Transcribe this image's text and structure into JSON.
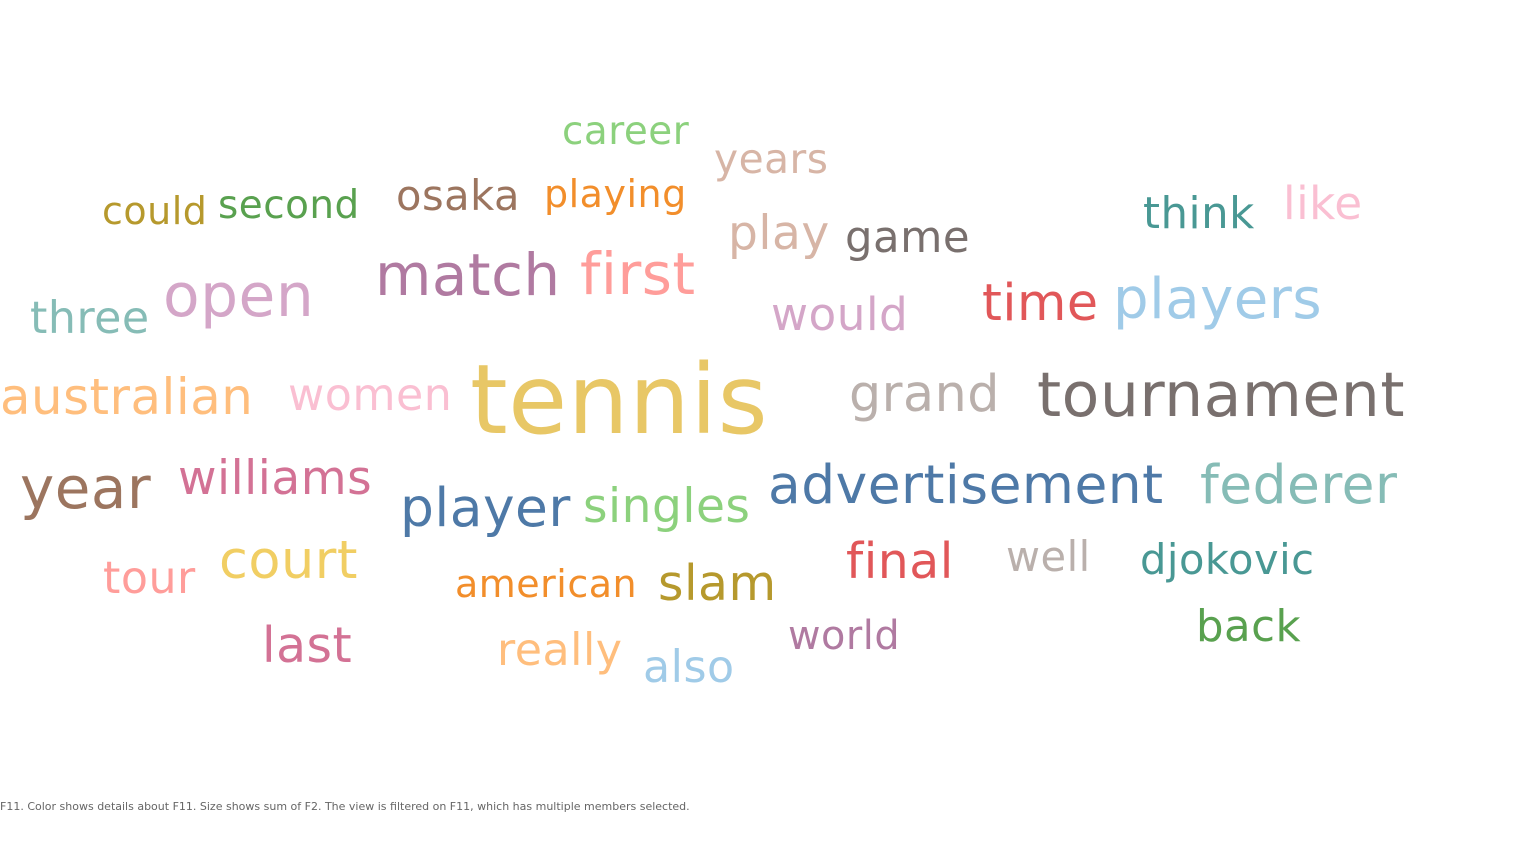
{
  "caption": "F11.  Color shows details about F11.  Size shows sum of F2. The view is filtered on F11, which has multiple members selected.",
  "chart_data": {
    "type": "word_cloud",
    "color_field": "F11",
    "size_field": "sum of F2",
    "words": [
      {
        "text": "tennis",
        "value": 100,
        "color": "#E8C766"
      },
      {
        "text": "tournament",
        "value": 62,
        "color": "#79706E"
      },
      {
        "text": "open",
        "value": 60,
        "color": "#D4A6C8"
      },
      {
        "text": "match",
        "value": 58,
        "color": "#B07AA1"
      },
      {
        "text": "year",
        "value": 58,
        "color": "#9C755F"
      },
      {
        "text": "first",
        "value": 58,
        "color": "#FF9D9A"
      },
      {
        "text": "players",
        "value": 56,
        "color": "#A0CBE8"
      },
      {
        "text": "advertisement",
        "value": 53,
        "color": "#4E79A7"
      },
      {
        "text": "player",
        "value": 53,
        "color": "#4E79A7"
      },
      {
        "text": "federer",
        "value": 53,
        "color": "#86BCB6"
      },
      {
        "text": "court",
        "value": 52,
        "color": "#F1CE63"
      },
      {
        "text": "time",
        "value": 50,
        "color": "#E15759"
      },
      {
        "text": "grand",
        "value": 50,
        "color": "#BAB0AC"
      },
      {
        "text": "australian",
        "value": 49,
        "color": "#FFBE7D"
      },
      {
        "text": "last",
        "value": 48,
        "color": "#D37295"
      },
      {
        "text": "final",
        "value": 48,
        "color": "#E15759"
      },
      {
        "text": "slam",
        "value": 48,
        "color": "#B6992D"
      },
      {
        "text": "williams",
        "value": 46,
        "color": "#D37295"
      },
      {
        "text": "singles",
        "value": 46,
        "color": "#8CD17D"
      },
      {
        "text": "play",
        "value": 46,
        "color": "#D7B5A6"
      },
      {
        "text": "would",
        "value": 44,
        "color": "#D4A6C8"
      },
      {
        "text": "like",
        "value": 44,
        "color": "#FABFD2"
      },
      {
        "text": "really",
        "value": 43,
        "color": "#FFBE7D"
      },
      {
        "text": "also",
        "value": 43,
        "color": "#A0CBE8"
      },
      {
        "text": "women",
        "value": 43,
        "color": "#FABFD2"
      },
      {
        "text": "three",
        "value": 43,
        "color": "#86BCB6"
      },
      {
        "text": "tour",
        "value": 43,
        "color": "#FF9D9A"
      },
      {
        "text": "back",
        "value": 42,
        "color": "#59A14F"
      },
      {
        "text": "game",
        "value": 42,
        "color": "#79706E"
      },
      {
        "text": "think",
        "value": 42,
        "color": "#499894"
      },
      {
        "text": "well",
        "value": 40,
        "color": "#BAB0AC"
      },
      {
        "text": "djokovic",
        "value": 40,
        "color": "#499894"
      },
      {
        "text": "osaka",
        "value": 40,
        "color": "#9C755F"
      },
      {
        "text": "years",
        "value": 39,
        "color": "#D7B5A6"
      },
      {
        "text": "world",
        "value": 38,
        "color": "#B07AA1"
      },
      {
        "text": "career",
        "value": 37,
        "color": "#8CD17D"
      },
      {
        "text": "second",
        "value": 37,
        "color": "#59A14F"
      },
      {
        "text": "american",
        "value": 36,
        "color": "#F28E2B"
      },
      {
        "text": "playing",
        "value": 36,
        "color": "#F28E2B"
      },
      {
        "text": "could",
        "value": 36,
        "color": "#B6992D"
      }
    ]
  }
}
